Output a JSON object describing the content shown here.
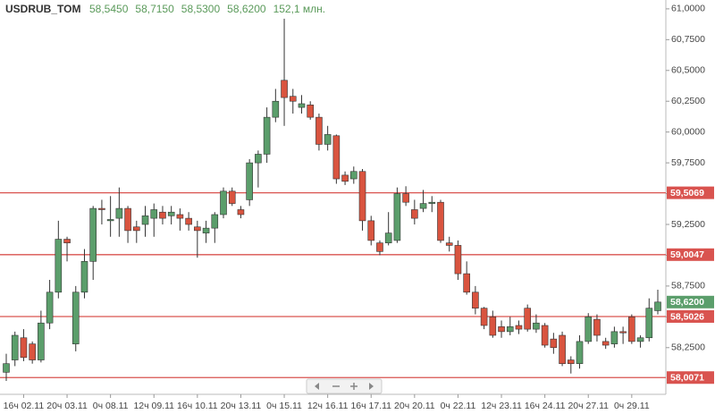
{
  "chart_data": {
    "type": "candlestick",
    "title": "USDRUB_TOM",
    "header_values": [
      "58,5450",
      "58,7150",
      "58,5300",
      "58,6200",
      "152,1 млн."
    ],
    "categories": [
      null,
      null,
      "16ч 02.11",
      null,
      null,
      null,
      null,
      "20ч 03.11",
      null,
      null,
      null,
      null,
      "0ч 08.11",
      null,
      null,
      null,
      null,
      "12ч 09.11",
      null,
      null,
      null,
      null,
      "16ч 10.11",
      null,
      null,
      null,
      null,
      "20ч 13.11",
      null,
      null,
      null,
      null,
      "0ч 15.11",
      null,
      null,
      null,
      null,
      "12ч 16.11",
      null,
      null,
      null,
      null,
      "16ч 17.11",
      null,
      null,
      null,
      null,
      "20ч 20.11",
      null,
      null,
      null,
      null,
      "0ч 22.11",
      null,
      null,
      null,
      null,
      "12ч 23.11",
      null,
      null,
      null,
      null,
      "16ч 24.11",
      null,
      null,
      null,
      null,
      "20ч 27.11",
      null,
      null,
      null,
      null,
      "0ч 29.11",
      null,
      null,
      null
    ],
    "open": [
      58.05,
      58.15,
      58.33,
      58.28,
      58.15,
      58.45,
      58.7,
      59.13,
      58.28,
      58.7,
      58.95,
      59.38,
      59.28,
      59.3,
      59.38,
      59.23,
      59.25,
      59.3,
      59.35,
      59.32,
      59.33,
      59.3,
      59.23,
      59.18,
      59.22,
      59.33,
      59.52,
      59.37,
      59.45,
      59.75,
      59.82,
      60.12,
      60.42,
      60.29,
      60.2,
      60.22,
      60.12,
      59.9,
      59.97,
      59.65,
      59.62,
      59.68,
      59.28,
      59.1,
      59.1,
      59.12,
      59.5,
      59.37,
      59.38,
      59.42,
      59.43,
      59.1,
      59.08,
      58.85,
      58.7,
      58.57,
      58.5,
      58.42,
      58.38,
      58.43,
      58.57,
      58.4,
      58.43,
      58.32,
      58.35,
      58.15,
      58.12,
      58.3,
      58.48,
      58.3,
      58.28,
      58.38,
      58.5,
      58.3,
      58.33,
      58.55
    ],
    "high": [
      58.2,
      58.38,
      58.4,
      58.3,
      58.55,
      58.8,
      59.28,
      59.15,
      58.75,
      59.05,
      59.4,
      59.45,
      59.48,
      59.55,
      59.4,
      59.28,
      59.4,
      59.42,
      59.4,
      59.4,
      59.38,
      59.35,
      59.28,
      59.28,
      59.35,
      59.55,
      59.55,
      59.4,
      59.78,
      59.85,
      60.2,
      60.35,
      60.92,
      60.35,
      60.3,
      60.25,
      60.15,
      60.05,
      59.98,
      59.68,
      59.72,
      59.7,
      59.32,
      59.12,
      59.35,
      59.55,
      59.56,
      59.45,
      59.53,
      59.48,
      59.45,
      59.15,
      59.12,
      58.95,
      58.75,
      58.58,
      58.55,
      58.47,
      58.5,
      58.47,
      58.6,
      58.52,
      58.45,
      58.37,
      58.38,
      58.18,
      58.35,
      58.53,
      58.52,
      58.33,
      58.42,
      58.42,
      58.52,
      58.35,
      58.65,
      58.72
    ],
    "low": [
      57.98,
      58.1,
      58.14,
      58.12,
      58.13,
      58.4,
      58.65,
      58.95,
      58.22,
      58.65,
      58.8,
      59.25,
      59.15,
      59.15,
      59.1,
      59.1,
      59.15,
      59.15,
      59.25,
      59.25,
      59.2,
      59.2,
      58.98,
      59.1,
      59.1,
      59.3,
      59.4,
      59.3,
      59.4,
      59.55,
      59.75,
      60.08,
      60.05,
      60.15,
      60.15,
      60.1,
      59.85,
      59.85,
      59.58,
      59.57,
      59.58,
      59.2,
      59.08,
      59.0,
      59.08,
      59.1,
      59.4,
      59.25,
      59.35,
      59.35,
      59.1,
      59.03,
      58.8,
      58.68,
      58.52,
      58.4,
      58.33,
      58.33,
      58.35,
      58.36,
      58.38,
      58.37,
      58.25,
      58.2,
      58.1,
      58.04,
      58.08,
      58.28,
      58.3,
      58.24,
      58.25,
      58.28,
      58.28,
      58.25,
      58.3,
      58.52
    ],
    "close": [
      58.12,
      58.35,
      58.17,
      58.15,
      58.45,
      58.7,
      59.13,
      59.1,
      58.7,
      58.95,
      59.38,
      59.37,
      59.29,
      59.38,
      59.2,
      59.2,
      59.32,
      59.37,
      59.3,
      59.35,
      59.3,
      59.25,
      59.2,
      59.22,
      59.33,
      59.52,
      59.42,
      59.33,
      59.75,
      59.82,
      60.12,
      60.25,
      60.28,
      60.25,
      60.23,
      60.12,
      59.9,
      59.98,
      59.62,
      59.6,
      59.68,
      59.28,
      59.12,
      59.03,
      59.18,
      59.5,
      59.43,
      59.3,
      59.42,
      59.43,
      59.12,
      59.08,
      58.85,
      58.7,
      58.57,
      58.43,
      58.35,
      58.38,
      58.42,
      58.4,
      58.4,
      58.45,
      58.27,
      58.25,
      58.12,
      58.12,
      58.3,
      58.5,
      58.35,
      58.27,
      58.38,
      58.37,
      58.3,
      58.33,
      58.57,
      58.62
    ],
    "up_color": "#5b9e6b",
    "down_color": "#d9543f",
    "ylim": [
      57.9,
      61.05
    ],
    "yticks": [
      {
        "value": 58.25,
        "label": "58,2500"
      },
      {
        "value": 58.5,
        "label": "58,5000"
      },
      {
        "value": 58.75,
        "label": "58,7500"
      },
      {
        "value": 59,
        "label": "59,0000"
      },
      {
        "value": 59.25,
        "label": "59,2500"
      },
      {
        "value": 59.5,
        "label": "59,5000"
      },
      {
        "value": 59.75,
        "label": "59,7500"
      },
      {
        "value": 60,
        "label": "60,0000"
      },
      {
        "value": 60.25,
        "label": "60,2500"
      },
      {
        "value": 60.5,
        "label": "60,5000"
      },
      {
        "value": 60.75,
        "label": "60,7500"
      },
      {
        "value": 61,
        "label": "61,0000"
      }
    ],
    "levels": [
      {
        "value": 59.5069,
        "label": "59,5069"
      },
      {
        "value": 59.0047,
        "label": "59,0047"
      },
      {
        "value": 58.5026,
        "label": "58,5026"
      },
      {
        "value": 58.0071,
        "label": "58,0071"
      }
    ],
    "level_color": "#d9534f",
    "current_price": {
      "value": 58.62,
      "label": "58,6200"
    }
  }
}
